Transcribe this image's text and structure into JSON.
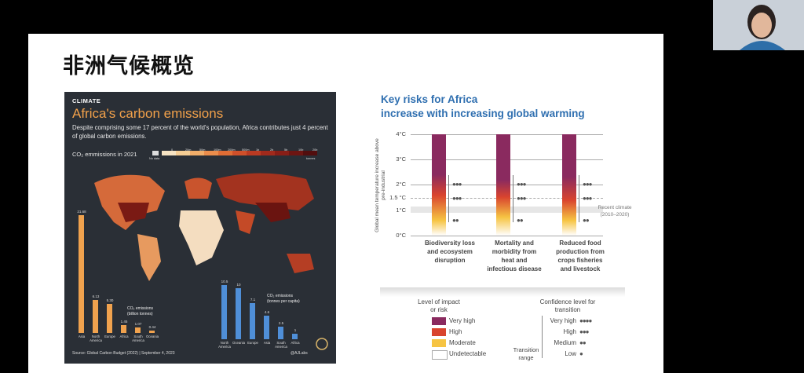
{
  "slide": {
    "title": "非洲气候概览"
  },
  "infographic": {
    "tag": "CLIMATE",
    "title": "Africa's carbon emissions",
    "description": "Despite comprising some 17 percent of the world's population, Africa contributes just 4 percent of global carbon emissions.",
    "subtitle": "CO₂ emmissions in 2021",
    "legend_labels": [
      "No data",
      "0",
      "20m",
      "50m",
      "100m",
      "200m",
      "500m",
      "1b",
      "2b",
      "5b",
      "10b",
      "20b",
      "tonnes"
    ],
    "legend_colors": [
      "#f6e3c3",
      "#f5cd94",
      "#f1ae6a",
      "#eb8d4c",
      "#e06d35",
      "#d0502a",
      "#bb3a22",
      "#a12a1c",
      "#881e17",
      "#6d1512",
      "#520e0e"
    ],
    "total_label": "CO₂ emissions\n(billion tonnes)",
    "per_capita_label": "CO₂ emissions\n(tonnes per capita)",
    "footer": "Source: Global Carbon Budget (2022) | September 4, 2023",
    "handle": "@AJLabs",
    "total": {
      "categories": [
        "Asia",
        "North America",
        "Europe",
        "Africa",
        "South America",
        "Oceania"
      ],
      "values": [
        "21.68",
        "6.13",
        "5.30",
        "1.45",
        "1.07",
        "0.44"
      ]
    },
    "per_capita": {
      "categories": [
        "North America",
        "Oceania",
        "Europe",
        "Asia",
        "South America",
        "Africa"
      ],
      "values": [
        "10.5",
        "10",
        "7.1",
        "4.6",
        "2.5",
        "1"
      ]
    }
  },
  "risk": {
    "title_line1": "Key risks for Africa",
    "title_line2": "increase with increasing global warming",
    "ylabel": "Global mean temperature increase above pre-industrial",
    "ticks": [
      "4°C",
      "3°C",
      "2°C",
      "1.5 °C",
      "1°C",
      "0°C"
    ],
    "recent_climate": "Recent climate (2010–2020)",
    "columns": [
      {
        "label": "Biodiversity loss and ecosystem disruption"
      },
      {
        "label": "Mortality and morbidity from heat and infectious disease"
      },
      {
        "label": "Reduced food production from crops fisheries and livestock"
      }
    ],
    "legend_impact_title": "Level of impact or risk",
    "impact_levels": [
      "Very high",
      "High",
      "Moderate",
      "Undetectable"
    ],
    "impact_colors": [
      "#8a2a5f",
      "#d9442e",
      "#f6c443",
      "#ffffff"
    ],
    "confidence_title": "Confidence level for transition",
    "confidence_levels": [
      "Very high",
      "High",
      "Medium",
      "Low"
    ],
    "transition_range": "Transition range"
  }
}
